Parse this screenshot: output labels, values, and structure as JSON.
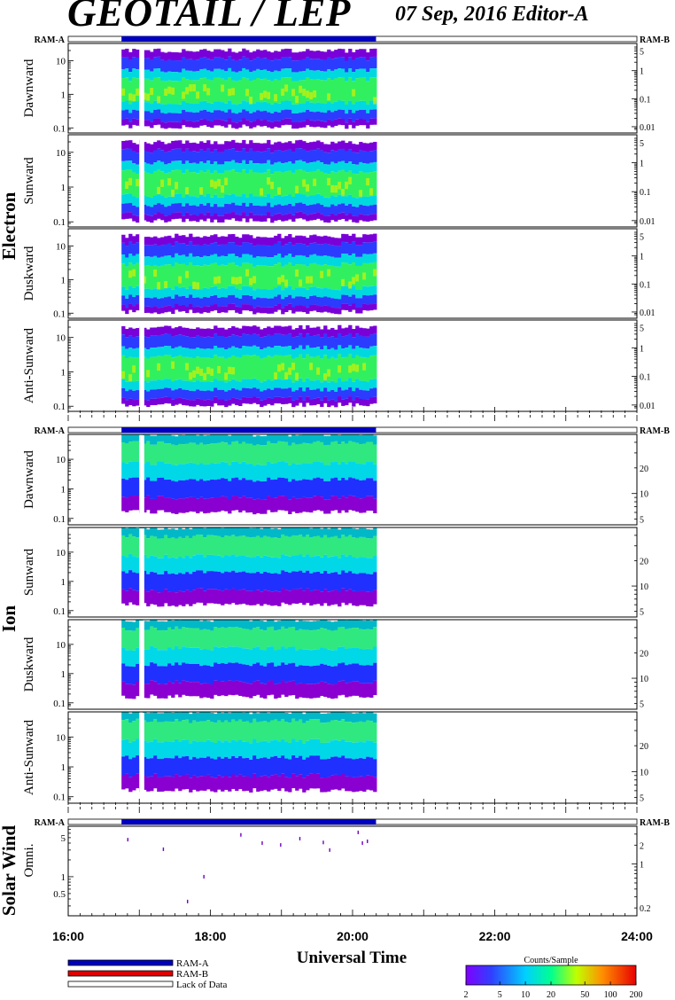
{
  "header": {
    "title": "GEOTAIL / LEP",
    "date_editor": "07 Sep, 2016   Editor-A"
  },
  "status_bar_labels": {
    "ram_a": "RAM-A",
    "ram_b": "RAM-B"
  },
  "time_axis": {
    "ticks": [
      "16:00",
      "18:00",
      "20:00",
      "22:00",
      "24:00"
    ],
    "label": "Universal Time"
  },
  "legend": {
    "items": [
      {
        "label": "RAM-A",
        "color": "#0000c0"
      },
      {
        "label": "RAM-B",
        "color": "#e00000"
      },
      {
        "label": "Lack of Data",
        "color": "#ffffff"
      }
    ]
  },
  "colorbar": {
    "title": "Counts/Sample",
    "ticks": [
      "2",
      "5",
      "10",
      "20",
      "50",
      "100",
      "200"
    ]
  },
  "chart_data": [
    {
      "type": "heatmap",
      "group": "Electron",
      "x_range_hours": [
        16,
        24
      ],
      "data_interval_hours": [
        16.75,
        20.33
      ],
      "data_gap_hours": [
        17.0,
        17.07
      ],
      "status": "RAM-A",
      "colors": {
        "purple": "#7a00d8",
        "blue": "#2b3bff",
        "cyan": "#00d8e0",
        "green": "#30f060",
        "yellow": "#d8f000"
      },
      "panels": [
        {
          "label": "Dawnward",
          "left_ticks": [
            "10",
            "1",
            "0.1"
          ],
          "right_ticks": [
            "5",
            "1",
            "0.1",
            "0.01"
          ]
        },
        {
          "label": "Sunward",
          "left_ticks": [
            "10",
            "1",
            "0.1"
          ],
          "right_ticks": [
            "5",
            "1",
            "0.1",
            "0.01"
          ]
        },
        {
          "label": "Duskward",
          "left_ticks": [
            "10",
            "1",
            "0.1"
          ],
          "right_ticks": [
            "5",
            "1",
            "0.1",
            "0.01"
          ]
        },
        {
          "label": "Anti-Sunward",
          "left_ticks": [
            "10",
            "1",
            "0.1"
          ],
          "right_ticks": [
            "5",
            "1",
            "0.1",
            "0.01"
          ]
        }
      ]
    },
    {
      "type": "heatmap",
      "group": "Ion",
      "x_range_hours": [
        16,
        24
      ],
      "data_interval_hours": [
        16.75,
        20.33
      ],
      "data_gap_hours": [
        17.0,
        17.07
      ],
      "status": "RAM-A",
      "colors": {
        "purple": "#8a00d0",
        "blue": "#2030ff",
        "cyan": "#00d8e8",
        "green": "#30e880",
        "teal": "#00b8c8"
      },
      "panels": [
        {
          "label": "Dawnward",
          "left_ticks": [
            "10",
            "1",
            "0.1"
          ],
          "right_ticks": [
            "20",
            "10",
            "5"
          ]
        },
        {
          "label": "Sunward",
          "left_ticks": [
            "10",
            "1",
            "0.1"
          ],
          "right_ticks": [
            "20",
            "10",
            "5"
          ]
        },
        {
          "label": "Duskward",
          "left_ticks": [
            "10",
            "1",
            "0.1"
          ],
          "right_ticks": [
            "20",
            "10",
            "5"
          ]
        },
        {
          "label": "Anti-Sunward",
          "left_ticks": [
            "10",
            "1",
            "0.1"
          ],
          "right_ticks": [
            "20",
            "10",
            "5"
          ]
        }
      ]
    },
    {
      "type": "scatter",
      "group": "Solar Wind",
      "panel_label": "Omni.",
      "status": "RAM-A",
      "left_ticks": [
        "5",
        "1",
        "0.5"
      ],
      "right_ticks": [
        "2",
        "1",
        "0.2"
      ],
      "y_range_log": [
        0.2,
        8
      ],
      "points": [
        {
          "x": 16.83,
          "y": 4.6
        },
        {
          "x": 17.33,
          "y": 3.1
        },
        {
          "x": 17.67,
          "y": 0.36
        },
        {
          "x": 17.9,
          "y": 1.0
        },
        {
          "x": 18.42,
          "y": 5.6
        },
        {
          "x": 18.72,
          "y": 4.0
        },
        {
          "x": 18.98,
          "y": 3.7
        },
        {
          "x": 19.25,
          "y": 4.8
        },
        {
          "x": 19.58,
          "y": 4.1
        },
        {
          "x": 19.67,
          "y": 3.0
        },
        {
          "x": 20.07,
          "y": 6.2
        },
        {
          "x": 20.13,
          "y": 4.0
        },
        {
          "x": 20.2,
          "y": 4.3
        }
      ]
    }
  ]
}
